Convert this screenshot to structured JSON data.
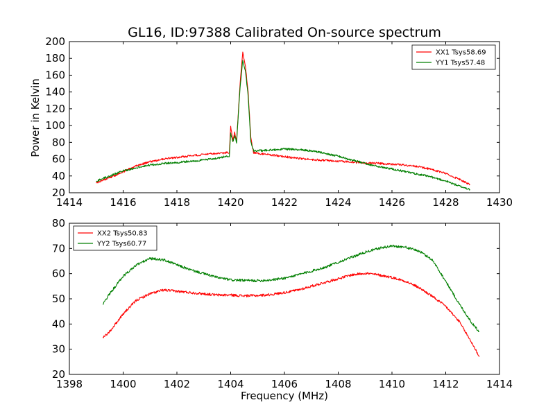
{
  "figure": {
    "title": "GL16, ID:97388 Calibrated On-source spectrum",
    "xlabel": "Frequency (MHz)",
    "ylabel": "Power in Kelvin"
  },
  "colors": {
    "red": "#ff0000",
    "green": "#007f00"
  },
  "chart_data": [
    {
      "type": "line",
      "xlabel": "",
      "ylabel": "Power in Kelvin",
      "xlim": [
        1414,
        1430
      ],
      "ylim": [
        20,
        200
      ],
      "xticks": [
        1414,
        1416,
        1418,
        1420,
        1422,
        1424,
        1426,
        1428,
        1430
      ],
      "yticks": [
        20,
        40,
        60,
        80,
        100,
        120,
        140,
        160,
        180,
        200
      ],
      "legend": "top-right",
      "series": [
        {
          "name": "XX1 Tsys58.69",
          "color": "#ff0000",
          "points": [
            [
              1415.0,
              32
            ],
            [
              1415.5,
              38
            ],
            [
              1416.0,
              45
            ],
            [
              1416.5,
              52
            ],
            [
              1417.0,
              57
            ],
            [
              1417.5,
              60
            ],
            [
              1418.0,
              62
            ],
            [
              1418.5,
              64
            ],
            [
              1419.0,
              65.5
            ],
            [
              1419.5,
              67
            ],
            [
              1419.95,
              68
            ],
            [
              1420.0,
              100
            ],
            [
              1420.08,
              82
            ],
            [
              1420.15,
              92
            ],
            [
              1420.22,
              82
            ],
            [
              1420.35,
              150
            ],
            [
              1420.45,
              188
            ],
            [
              1420.55,
              170
            ],
            [
              1420.65,
              140
            ],
            [
              1420.75,
              85
            ],
            [
              1420.85,
              68
            ],
            [
              1421.0,
              67
            ],
            [
              1421.5,
              65
            ],
            [
              1422.0,
              63
            ],
            [
              1422.5,
              61
            ],
            [
              1423.0,
              59.5
            ],
            [
              1423.5,
              58.5
            ],
            [
              1424.0,
              57.5
            ],
            [
              1424.5,
              56.5
            ],
            [
              1425.0,
              55.5
            ],
            [
              1425.5,
              55
            ],
            [
              1426.0,
              54
            ],
            [
              1426.5,
              53
            ],
            [
              1427.0,
              51
            ],
            [
              1427.5,
              47.5
            ],
            [
              1428.0,
              43
            ],
            [
              1428.5,
              36
            ],
            [
              1428.9,
              30
            ]
          ]
        },
        {
          "name": "YY1 Tsys57.48",
          "color": "#007f00",
          "points": [
            [
              1415.0,
              34
            ],
            [
              1415.5,
              40
            ],
            [
              1416.0,
              46
            ],
            [
              1416.5,
              50
            ],
            [
              1417.0,
              53
            ],
            [
              1417.5,
              55
            ],
            [
              1418.0,
              56
            ],
            [
              1418.5,
              57.5
            ],
            [
              1419.0,
              59
            ],
            [
              1419.5,
              61
            ],
            [
              1419.95,
              64
            ],
            [
              1420.0,
              92
            ],
            [
              1420.08,
              80
            ],
            [
              1420.15,
              88
            ],
            [
              1420.22,
              80
            ],
            [
              1420.35,
              145
            ],
            [
              1420.45,
              178
            ],
            [
              1420.55,
              165
            ],
            [
              1420.65,
              135
            ],
            [
              1420.75,
              80
            ],
            [
              1420.85,
              70
            ],
            [
              1421.0,
              70
            ],
            [
              1421.5,
              71
            ],
            [
              1422.0,
              72
            ],
            [
              1422.5,
              71.5
            ],
            [
              1423.0,
              70
            ],
            [
              1423.5,
              67
            ],
            [
              1424.0,
              63.5
            ],
            [
              1424.5,
              59
            ],
            [
              1425.0,
              55
            ],
            [
              1425.5,
              51
            ],
            [
              1426.0,
              48.5
            ],
            [
              1426.5,
              45
            ],
            [
              1427.0,
              42
            ],
            [
              1427.5,
              38.5
            ],
            [
              1428.0,
              34
            ],
            [
              1428.5,
              28
            ],
            [
              1428.9,
              24
            ]
          ]
        }
      ]
    },
    {
      "type": "line",
      "xlabel": "Frequency (MHz)",
      "ylabel": "",
      "xlim": [
        1398,
        1414
      ],
      "ylim": [
        20,
        80
      ],
      "xticks": [
        1398,
        1400,
        1402,
        1404,
        1406,
        1408,
        1410,
        1412,
        1414
      ],
      "yticks": [
        20,
        30,
        40,
        50,
        60,
        70,
        80
      ],
      "legend": "top-left",
      "series": [
        {
          "name": "XX2 Tsys50.83",
          "color": "#ff0000",
          "points": [
            [
              1399.25,
              34.5
            ],
            [
              1399.5,
              37
            ],
            [
              1400.0,
              44
            ],
            [
              1400.5,
              49.5
            ],
            [
              1401.0,
              52
            ],
            [
              1401.5,
              53.5
            ],
            [
              1402.0,
              53
            ],
            [
              1402.5,
              52.5
            ],
            [
              1403.0,
              52
            ],
            [
              1403.5,
              51.5
            ],
            [
              1404.0,
              51.5
            ],
            [
              1404.5,
              51.2
            ],
            [
              1405.0,
              51.3
            ],
            [
              1405.5,
              51.7
            ],
            [
              1406.0,
              52.5
            ],
            [
              1406.5,
              53.5
            ],
            [
              1407.0,
              55
            ],
            [
              1407.5,
              56.5
            ],
            [
              1408.0,
              58
            ],
            [
              1408.5,
              59.5
            ],
            [
              1409.0,
              60.2
            ],
            [
              1409.5,
              59.5
            ],
            [
              1410.0,
              58.5
            ],
            [
              1410.5,
              57
            ],
            [
              1411.0,
              54.5
            ],
            [
              1411.5,
              51
            ],
            [
              1412.0,
              47
            ],
            [
              1412.5,
              41
            ],
            [
              1413.0,
              32
            ],
            [
              1413.25,
              27
            ]
          ]
        },
        {
          "name": "YY2 Tsys60.77",
          "color": "#007f00",
          "points": [
            [
              1399.25,
              48
            ],
            [
              1399.5,
              52
            ],
            [
              1400.0,
              59
            ],
            [
              1400.5,
              63.5
            ],
            [
              1401.0,
              66
            ],
            [
              1401.5,
              65.5
            ],
            [
              1402.0,
              63.5
            ],
            [
              1402.5,
              61.5
            ],
            [
              1403.0,
              60
            ],
            [
              1403.5,
              58.5
            ],
            [
              1404.0,
              57.5
            ],
            [
              1404.5,
              57.3
            ],
            [
              1405.0,
              57.2
            ],
            [
              1405.5,
              57.5
            ],
            [
              1406.0,
              58.2
            ],
            [
              1406.5,
              59.5
            ],
            [
              1407.0,
              61
            ],
            [
              1407.5,
              62.5
            ],
            [
              1408.0,
              64.5
            ],
            [
              1408.5,
              66.5
            ],
            [
              1409.0,
              68.5
            ],
            [
              1409.5,
              70
            ],
            [
              1410.0,
              71
            ],
            [
              1410.5,
              70.5
            ],
            [
              1411.0,
              69
            ],
            [
              1411.5,
              65.5
            ],
            [
              1412.0,
              57
            ],
            [
              1412.5,
              48
            ],
            [
              1413.0,
              40
            ],
            [
              1413.25,
              37
            ]
          ]
        }
      ]
    }
  ]
}
